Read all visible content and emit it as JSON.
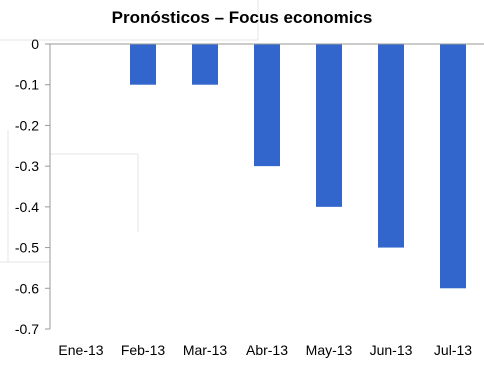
{
  "chart_data": {
    "type": "bar",
    "title": "Pronósticos – Focus economics",
    "xlabel": "",
    "ylabel": "",
    "categories": [
      "Ene-13",
      "Feb-13",
      "Mar-13",
      "Abr-13",
      "May-13",
      "Jun-13",
      "Jul-13"
    ],
    "values": [
      0,
      -0.1,
      -0.1,
      -0.3,
      -0.4,
      -0.5,
      -0.6
    ],
    "ylim": [
      -0.7,
      0
    ],
    "yticks": [
      0,
      -0.1,
      -0.2,
      -0.3,
      -0.4,
      -0.5,
      -0.6,
      -0.7
    ],
    "ytick_labels": [
      "0",
      "-0.1",
      "-0.2",
      "-0.3",
      "-0.4",
      "-0.5",
      "-0.6",
      "-0.7"
    ],
    "grid": false,
    "legend": "none",
    "bar_color": "#3366cc"
  }
}
